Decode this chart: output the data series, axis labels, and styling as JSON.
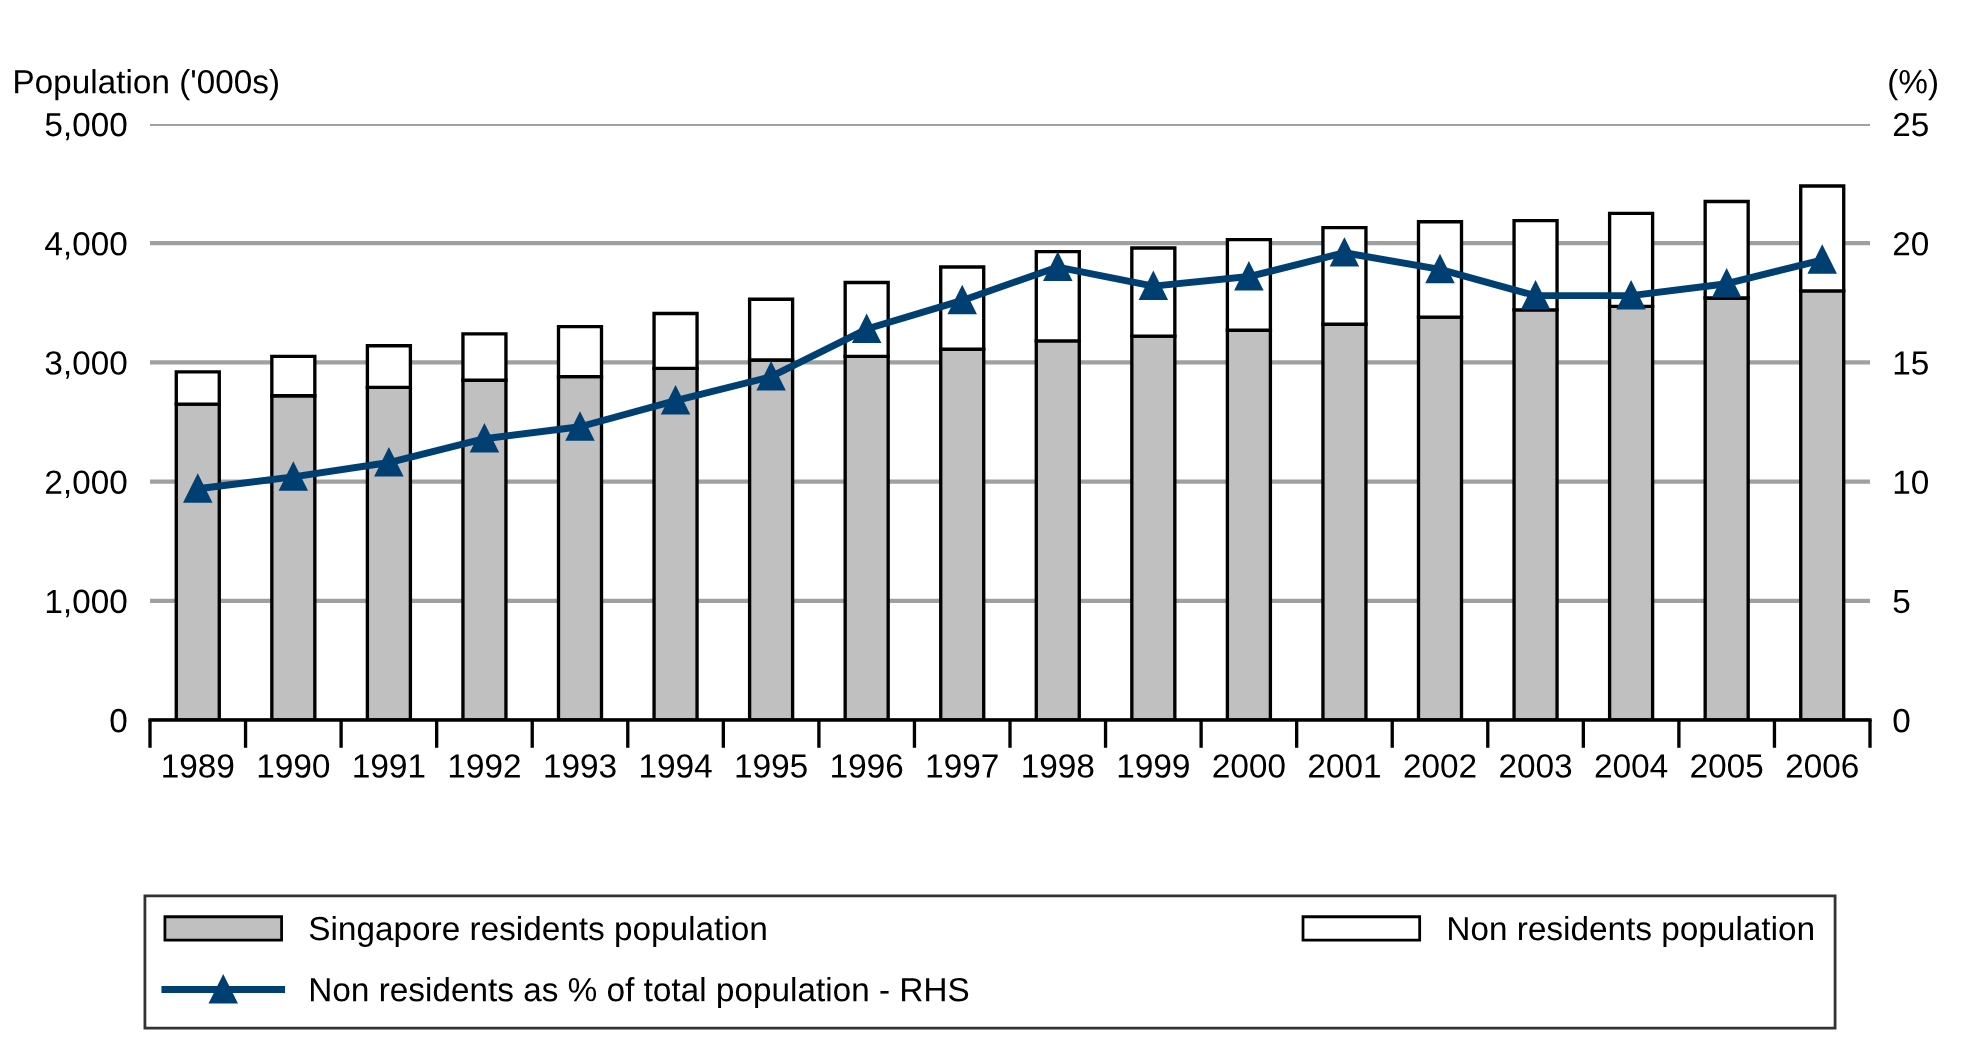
{
  "chart_data": {
    "type": "bar",
    "stacked": true,
    "ylabel": "Population ('000s)",
    "y2label": "(%)",
    "categories": [
      "1989",
      "1990",
      "1991",
      "1992",
      "1993",
      "1994",
      "1995",
      "1996",
      "1997",
      "1998",
      "1999",
      "2000",
      "2001",
      "2002",
      "2003",
      "2004",
      "2005",
      "2006"
    ],
    "series": [
      {
        "name": "Singapore residents population",
        "color": "#c0c0c0",
        "values": [
          2650,
          2720,
          2790,
          2850,
          2880,
          2950,
          3020,
          3050,
          3110,
          3180,
          3220,
          3270,
          3320,
          3380,
          3440,
          3470,
          3540,
          3600
        ]
      },
      {
        "name": "Non residents population",
        "color": "#ffffff",
        "values": [
          270,
          330,
          350,
          390,
          420,
          460,
          510,
          620,
          690,
          750,
          740,
          760,
          810,
          800,
          750,
          780,
          810,
          880
        ]
      },
      {
        "name": "Non residents as % of total population - RHS",
        "type": "line",
        "axis": "y2",
        "color": "#003f72",
        "marker": "triangle",
        "values": [
          9.7,
          10.2,
          10.8,
          11.8,
          12.3,
          13.4,
          14.4,
          16.4,
          17.6,
          19.0,
          18.2,
          18.6,
          19.6,
          18.9,
          17.8,
          17.8,
          18.3,
          19.3
        ]
      }
    ],
    "ylim": [
      0,
      5000
    ],
    "yticks": [
      0,
      {
        "value": 1000,
        "label": "1,000"
      },
      {
        "value": 2000,
        "label": "2,000"
      },
      {
        "value": 3000,
        "label": "3,000"
      },
      {
        "value": 4000,
        "label": "4,000"
      },
      {
        "value": 5000,
        "label": "5,000"
      }
    ],
    "y2lim": [
      0,
      25
    ],
    "y2ticks": [
      0,
      5,
      10,
      15,
      20,
      25
    ],
    "grid": "y",
    "legend": "bottom"
  }
}
